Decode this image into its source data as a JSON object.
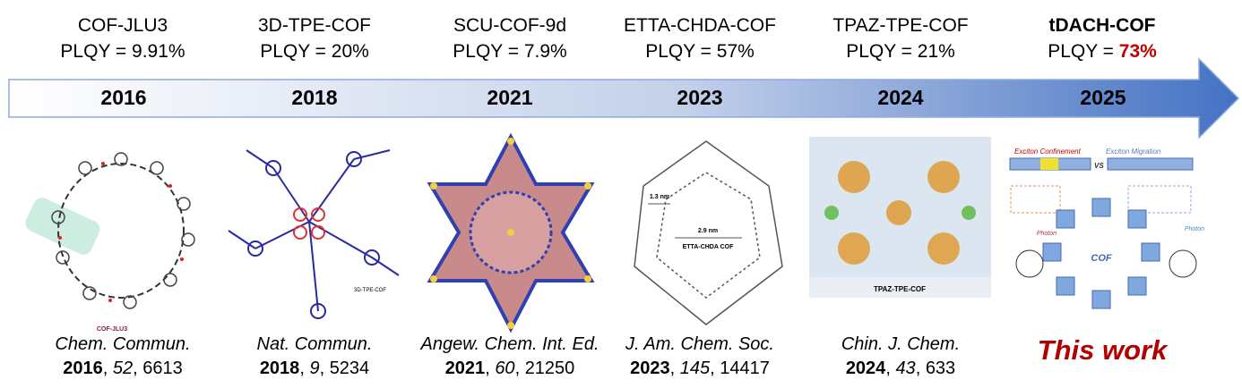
{
  "entries": [
    {
      "name": "COF-JLU3",
      "plqy_label": "PLQY = ",
      "plqy": "9.91%",
      "year": "2016",
      "journal": "Chem. Commun.",
      "cite_year": "2016",
      "volume": "52",
      "page": "6613",
      "figure_label": "COF-JLU3"
    },
    {
      "name": "3D-TPE-COF",
      "plqy_label": "PLQY = ",
      "plqy": "20%",
      "year": "2018",
      "journal": "Nat. Commun.",
      "cite_year": "2018",
      "volume": "9",
      "page": "5234",
      "figure_label": "3D-TPE-COF"
    },
    {
      "name": "SCU-COF-9d",
      "plqy_label": "PLQY = ",
      "plqy": "7.9%",
      "year": "2021",
      "journal": "Angew. Chem. Int. Ed.",
      "cite_year": "2021",
      "volume": "60",
      "page": "21250"
    },
    {
      "name": "ETTA-CHDA-COF",
      "plqy_label": "PLQY = ",
      "plqy": "57%",
      "year": "2023",
      "journal": "J. Am. Chem. Soc.",
      "cite_year": "2023",
      "volume": "145",
      "page": "14417",
      "figure_label": "ETTA-CHDA COF",
      "dim_small": "1.3 nm",
      "dim_large": "2.9 nm"
    },
    {
      "name": "TPAZ-TPE-COF",
      "plqy_label": "PLQY = ",
      "plqy": "21%",
      "year": "2024",
      "journal": "Chin. J. Chem.",
      "cite_year": "2024",
      "volume": "43",
      "page": "633",
      "figure_label": "TPAZ-TPE-COF"
    },
    {
      "name": "tDACH-COF",
      "plqy_label": "PLQY = ",
      "plqy": "73%",
      "year": "2025",
      "this_work": "This work"
    }
  ],
  "this_work_figure": {
    "confinement": "Exciton Confinement",
    "migration": "Exciton Migration",
    "vs": "VS",
    "photon": "Photon",
    "cof": "COF"
  },
  "colors": {
    "arrow_start": "#ffffff",
    "arrow_end": "#4472c4",
    "highlight": "#c00000"
  }
}
